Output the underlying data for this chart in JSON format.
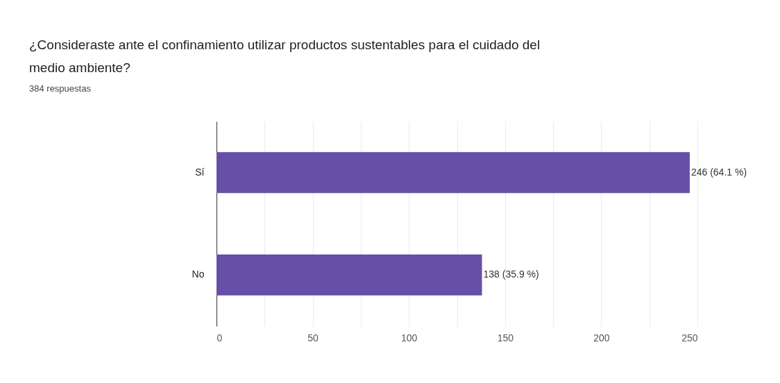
{
  "chart_data": {
    "type": "bar",
    "orientation": "horizontal",
    "title": [
      "¿Consideraste ante el confinamiento utilizar productos sustentables para el cuidado del",
      "medio ambiente?"
    ],
    "subtitle": "384 respuestas",
    "categories": [
      "Sí",
      "No"
    ],
    "values": [
      246,
      138
    ],
    "color": "#674ea7",
    "value_labels": [
      "246 (64.1 %)",
      "138 (35.9 %)"
    ],
    "xlim": [
      0,
      250
    ],
    "xticks": [
      0,
      {
        "value": 25,
        "label": null
      },
      50,
      {
        "value": 75,
        "label": null
      },
      100,
      {
        "value": 125,
        "label": null
      },
      150,
      {
        "value": 175,
        "label": null
      },
      200,
      {
        "value": 225,
        "label": null
      },
      250
    ],
    "grid": "x"
  }
}
